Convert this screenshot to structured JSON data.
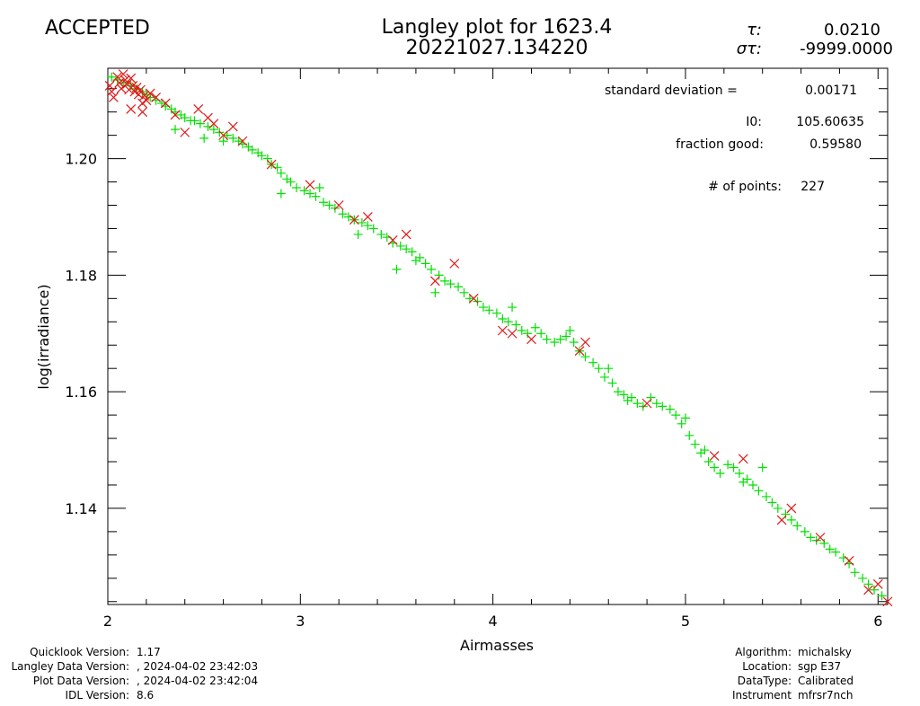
{
  "status": "ACCEPTED",
  "colors": {
    "status": "#33dd33",
    "good_points": "#00e000",
    "bad_points": "#e01818",
    "axes": "#000000"
  },
  "title": {
    "line1": "Langley plot for 1623.4",
    "line2": "20221027.134220"
  },
  "tau": {
    "label": "τ:",
    "value": "0.0210"
  },
  "sigma_tau": {
    "label": "στ:",
    "value": "-9999.0000"
  },
  "stats": {
    "std_label": "standard deviation  =",
    "std_value": "0.00171",
    "i0_label": "I0:",
    "i0_value": "105.60635",
    "fraction_label": "fraction good:",
    "fraction_value": "0.59580",
    "points_label": "# of points:",
    "points_value": "227"
  },
  "footer_left": {
    "labels": [
      "Quicklook Version:",
      "Langley Data Version:",
      "Plot Data Version:",
      "IDL Version:"
    ],
    "values": [
      "1.17",
      ", 2024-04-02 23:42:03",
      ", 2024-04-02 23:42:04",
      "8.6"
    ]
  },
  "footer_right": {
    "labels": [
      "Algorithm:",
      "Location:",
      "DataType:",
      "Instrument"
    ],
    "values": [
      "michalsky",
      "sgp E37",
      "Calibrated",
      "mfrsr7nch"
    ]
  },
  "chart_data": {
    "type": "scatter",
    "title": "Langley plot for 1623.4",
    "xlabel": "Airmasses",
    "ylabel": "log(irradiance)",
    "xlim": [
      2.0,
      6.05
    ],
    "ylim": [
      1.1235,
      1.2155
    ],
    "x_ticks": [
      2,
      3,
      4,
      5,
      6
    ],
    "x_tick_labels": [
      "2",
      "3",
      "4",
      "5",
      "6"
    ],
    "y_ticks": [
      1.14,
      1.16,
      1.18,
      1.2
    ],
    "y_tick_labels": [
      "1.14",
      "1.16",
      "1.18",
      "1.20"
    ],
    "grid": false,
    "series": [
      {
        "marker": "+",
        "points": [
          [
            2.02,
            1.214
          ],
          [
            2.05,
            1.2135
          ],
          [
            2.08,
            1.213
          ],
          [
            2.12,
            1.2125
          ],
          [
            2.15,
            1.212
          ],
          [
            2.18,
            1.2115
          ],
          [
            2.2,
            1.211
          ],
          [
            2.22,
            1.2105
          ],
          [
            2.25,
            1.21
          ],
          [
            2.28,
            1.2095
          ],
          [
            2.3,
            1.209
          ],
          [
            2.33,
            1.2085
          ],
          [
            2.35,
            1.208
          ],
          [
            2.38,
            1.2075
          ],
          [
            2.4,
            1.207
          ],
          [
            2.43,
            1.2065
          ],
          [
            2.45,
            1.2065
          ],
          [
            2.48,
            1.206
          ],
          [
            2.52,
            1.2055
          ],
          [
            2.55,
            1.205
          ],
          [
            2.58,
            1.2045
          ],
          [
            2.62,
            1.204
          ],
          [
            2.65,
            1.2035
          ],
          [
            2.68,
            1.203
          ],
          [
            2.7,
            1.2025
          ],
          [
            2.73,
            1.202
          ],
          [
            2.75,
            1.2015
          ],
          [
            2.78,
            1.201
          ],
          [
            2.8,
            1.2005
          ],
          [
            2.83,
            1.2
          ],
          [
            2.85,
            1.199
          ],
          [
            2.88,
            1.1985
          ],
          [
            2.9,
            1.1975
          ],
          [
            2.93,
            1.1965
          ],
          [
            2.95,
            1.196
          ],
          [
            2.98,
            1.195
          ],
          [
            3.02,
            1.1945
          ],
          [
            3.05,
            1.194
          ],
          [
            3.08,
            1.1935
          ],
          [
            3.12,
            1.1925
          ],
          [
            3.15,
            1.192
          ],
          [
            3.18,
            1.1915
          ],
          [
            3.22,
            1.1905
          ],
          [
            3.25,
            1.19
          ],
          [
            3.28,
            1.1895
          ],
          [
            3.32,
            1.189
          ],
          [
            3.35,
            1.1885
          ],
          [
            3.38,
            1.188
          ],
          [
            3.42,
            1.187
          ],
          [
            3.45,
            1.1865
          ],
          [
            3.48,
            1.1855
          ],
          [
            3.52,
            1.185
          ],
          [
            3.55,
            1.1845
          ],
          [
            3.58,
            1.184
          ],
          [
            3.62,
            1.183
          ],
          [
            3.65,
            1.182
          ],
          [
            3.68,
            1.181
          ],
          [
            3.72,
            1.18
          ],
          [
            3.75,
            1.179
          ],
          [
            3.78,
            1.1785
          ],
          [
            3.82,
            1.178
          ],
          [
            3.85,
            1.177
          ],
          [
            3.88,
            1.176
          ],
          [
            3.92,
            1.1755
          ],
          [
            3.95,
            1.1745
          ],
          [
            3.98,
            1.174
          ],
          [
            4.02,
            1.1735
          ],
          [
            4.05,
            1.1725
          ],
          [
            4.08,
            1.172
          ],
          [
            4.12,
            1.1715
          ],
          [
            4.15,
            1.1705
          ],
          [
            4.18,
            1.17
          ],
          [
            4.22,
            1.171
          ],
          [
            4.25,
            1.17
          ],
          [
            4.28,
            1.169
          ],
          [
            4.32,
            1.1685
          ],
          [
            4.35,
            1.169
          ],
          [
            4.38,
            1.1695
          ],
          [
            4.42,
            1.1685
          ],
          [
            4.45,
            1.167
          ],
          [
            4.48,
            1.166
          ],
          [
            4.52,
            1.165
          ],
          [
            4.55,
            1.164
          ],
          [
            4.58,
            1.1625
          ],
          [
            4.62,
            1.1615
          ],
          [
            4.65,
            1.16
          ],
          [
            4.68,
            1.1595
          ],
          [
            4.72,
            1.159
          ],
          [
            4.75,
            1.158
          ],
          [
            4.78,
            1.1575
          ],
          [
            4.82,
            1.159
          ],
          [
            4.85,
            1.158
          ],
          [
            4.88,
            1.1575
          ],
          [
            4.92,
            1.157
          ],
          [
            4.95,
            1.156
          ],
          [
            4.98,
            1.1545
          ],
          [
            5.02,
            1.1525
          ],
          [
            5.05,
            1.151
          ],
          [
            5.08,
            1.1495
          ],
          [
            5.12,
            1.148
          ],
          [
            5.15,
            1.147
          ],
          [
            5.18,
            1.146
          ],
          [
            5.22,
            1.1475
          ],
          [
            5.25,
            1.147
          ],
          [
            5.28,
            1.146
          ],
          [
            5.32,
            1.145
          ],
          [
            5.35,
            1.144
          ],
          [
            5.38,
            1.143
          ],
          [
            5.42,
            1.142
          ],
          [
            5.45,
            1.141
          ],
          [
            5.48,
            1.14
          ],
          [
            5.52,
            1.139
          ],
          [
            5.55,
            1.138
          ],
          [
            5.58,
            1.137
          ],
          [
            5.62,
            1.136
          ],
          [
            5.65,
            1.135
          ],
          [
            5.68,
            1.1345
          ],
          [
            5.72,
            1.134
          ],
          [
            5.75,
            1.133
          ],
          [
            5.78,
            1.1325
          ],
          [
            5.82,
            1.1315
          ],
          [
            5.85,
            1.1305
          ],
          [
            5.88,
            1.129
          ],
          [
            5.92,
            1.128
          ],
          [
            5.95,
            1.127
          ],
          [
            5.98,
            1.126
          ],
          [
            6.02,
            1.125
          ],
          [
            2.35,
            1.205
          ],
          [
            2.6,
            1.203
          ],
          [
            2.9,
            1.194
          ],
          [
            3.3,
            1.187
          ],
          [
            3.5,
            1.181
          ],
          [
            3.7,
            1.177
          ],
          [
            4.1,
            1.1745
          ],
          [
            4.6,
            1.164
          ],
          [
            5.1,
            1.15
          ],
          [
            5.4,
            1.147
          ],
          [
            3.1,
            1.195
          ],
          [
            2.5,
            1.2035
          ],
          [
            3.6,
            1.1825
          ],
          [
            4.4,
            1.1705
          ],
          [
            4.7,
            1.1585
          ],
          [
            5.0,
            1.1555
          ],
          [
            5.3,
            1.1445
          ]
        ]
      },
      {
        "marker": "x",
        "points": [
          [
            2.01,
            1.2125
          ],
          [
            2.02,
            1.2115
          ],
          [
            2.03,
            1.2105
          ],
          [
            2.05,
            1.214
          ],
          [
            2.06,
            1.213
          ],
          [
            2.07,
            1.212
          ],
          [
            2.08,
            1.2145
          ],
          [
            2.09,
            1.2135
          ],
          [
            2.1,
            1.2128
          ],
          [
            2.11,
            1.2118
          ],
          [
            2.12,
            1.2138
          ],
          [
            2.13,
            1.2125
          ],
          [
            2.14,
            1.2115
          ],
          [
            2.15,
            1.2122
          ],
          [
            2.16,
            1.211
          ],
          [
            2.17,
            1.2118
          ],
          [
            2.18,
            1.2095
          ],
          [
            2.19,
            1.2108
          ],
          [
            2.2,
            1.21
          ],
          [
            2.22,
            1.2112
          ],
          [
            2.25,
            1.2105
          ],
          [
            2.12,
            1.2085
          ],
          [
            2.18,
            1.208
          ],
          [
            2.3,
            1.2095
          ],
          [
            2.35,
            1.2075
          ],
          [
            2.4,
            1.2045
          ],
          [
            2.47,
            1.2085
          ],
          [
            2.52,
            1.207
          ],
          [
            2.55,
            1.206
          ],
          [
            2.6,
            1.204
          ],
          [
            2.65,
            1.2055
          ],
          [
            2.7,
            1.203
          ],
          [
            2.85,
            1.199
          ],
          [
            3.05,
            1.1955
          ],
          [
            3.2,
            1.192
          ],
          [
            3.28,
            1.1895
          ],
          [
            3.35,
            1.19
          ],
          [
            3.48,
            1.186
          ],
          [
            3.55,
            1.187
          ],
          [
            3.7,
            1.179
          ],
          [
            3.8,
            1.182
          ],
          [
            3.9,
            1.176
          ],
          [
            4.05,
            1.1705
          ],
          [
            4.1,
            1.17
          ],
          [
            4.2,
            1.169
          ],
          [
            4.45,
            1.167
          ],
          [
            4.48,
            1.1685
          ],
          [
            4.8,
            1.158
          ],
          [
            5.15,
            1.149
          ],
          [
            5.3,
            1.1485
          ],
          [
            5.5,
            1.138
          ],
          [
            5.55,
            1.14
          ],
          [
            5.7,
            1.135
          ],
          [
            5.85,
            1.131
          ],
          [
            5.95,
            1.126
          ],
          [
            6.0,
            1.127
          ],
          [
            6.05,
            1.124
          ]
        ]
      }
    ]
  }
}
